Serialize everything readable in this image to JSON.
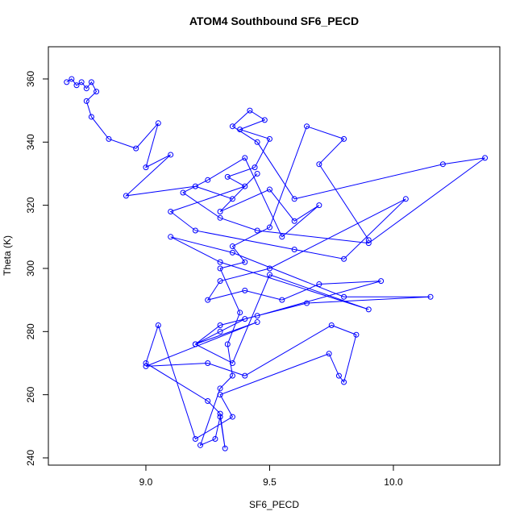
{
  "chart_data": {
    "type": "line",
    "title": "ATOM4 Southbound SF6_PECD",
    "xlabel": "SF6_PECD",
    "ylabel": "Theta (K)",
    "markers": true,
    "color": "#0000ff",
    "x": [
      8.68,
      8.7,
      8.72,
      8.74,
      8.76,
      8.78,
      8.8,
      8.76,
      8.78,
      8.85,
      8.96,
      9.05,
      9.0,
      9.1,
      8.92,
      9.2,
      9.35,
      9.45,
      9.3,
      9.5,
      9.6,
      9.7,
      9.55,
      9.4,
      9.25,
      9.15,
      9.3,
      9.45,
      9.9,
      10.37,
      10.2,
      9.6,
      9.45,
      9.35,
      9.42,
      9.48,
      9.38,
      9.5,
      9.44,
      9.33,
      9.4,
      9.1,
      9.2,
      9.6,
      9.8,
      10.05,
      9.5,
      9.3,
      9.25,
      9.4,
      9.55,
      9.7,
      9.95,
      9.45,
      9.3,
      9.2,
      9.35,
      9.5,
      9.9,
      9.3,
      9.1,
      9.35,
      9.8,
      10.15,
      9.65,
      9.4,
      9.3,
      9.2,
      9.45,
      9.0,
      9.25,
      9.4,
      9.75,
      9.85,
      9.8,
      9.78,
      9.74,
      9.3,
      9.35,
      9.2,
      9.05,
      9.0,
      9.25,
      9.3,
      9.32,
      9.3,
      9.28,
      9.22,
      9.3,
      9.35,
      9.33,
      9.38,
      9.3,
      9.4,
      9.35,
      9.5,
      9.65,
      9.8,
      9.7,
      9.9
    ],
    "values": [
      359,
      360,
      358,
      359,
      357,
      359,
      356,
      353,
      348,
      341,
      338,
      346,
      332,
      336,
      323,
      326,
      322,
      330,
      318,
      325,
      315,
      320,
      310,
      335,
      328,
      324,
      316,
      312,
      308,
      335,
      333,
      322,
      340,
      345,
      350,
      347,
      344,
      341,
      332,
      329,
      326,
      318,
      312,
      306,
      303,
      322,
      300,
      296,
      290,
      293,
      290,
      295,
      296,
      285,
      282,
      276,
      270,
      298,
      287,
      302,
      310,
      305,
      291,
      291,
      289,
      284,
      280,
      276,
      283,
      269,
      270,
      266,
      282,
      279,
      264,
      266,
      273,
      260,
      253,
      246,
      282,
      270,
      258,
      254,
      243,
      253,
      246,
      244,
      262,
      266,
      276,
      286,
      300,
      302,
      307,
      313,
      345,
      341,
      333,
      309
    ],
    "xlim": [
      8.606,
      10.43
    ],
    "ylim": [
      237.7,
      370.2
    ],
    "xticks": [
      {
        "value": 9,
        "label": "9.0"
      },
      9.5,
      {
        "value": 10,
        "label": "10.0"
      }
    ],
    "yticks": [
      240,
      260,
      280,
      300,
      320,
      340,
      360
    ]
  }
}
